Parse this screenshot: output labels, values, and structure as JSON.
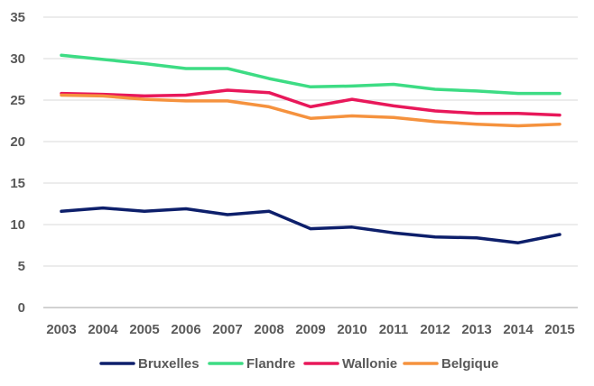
{
  "chart_data": {
    "type": "line",
    "title": "",
    "xlabel": "",
    "ylabel": "",
    "ylim": [
      0,
      35
    ],
    "yticks": [
      "0",
      "5",
      "10",
      "15",
      "20",
      "25",
      "30",
      "35"
    ],
    "categories": [
      "2003",
      "2004",
      "2005",
      "2006",
      "2007",
      "2008",
      "2009",
      "2010",
      "2011",
      "2012",
      "2013",
      "2014",
      "2015"
    ],
    "grid": "horizontal",
    "legend_position": "bottom",
    "series": [
      {
        "name": "Bruxelles",
        "color": "#0d1f6b",
        "values": [
          11.6,
          12.0,
          11.6,
          11.9,
          11.2,
          11.6,
          9.5,
          9.7,
          9.0,
          8.5,
          8.4,
          7.8,
          8.8
        ]
      },
      {
        "name": "Flandre",
        "color": "#3ddc84",
        "values": [
          30.4,
          29.9,
          29.4,
          28.8,
          28.8,
          27.6,
          26.6,
          26.7,
          26.9,
          26.3,
          26.1,
          25.8,
          25.8
        ]
      },
      {
        "name": "Wallonie",
        "color": "#e8185a",
        "values": [
          25.8,
          25.7,
          25.5,
          25.6,
          26.2,
          25.9,
          24.2,
          25.1,
          24.3,
          23.7,
          23.4,
          23.4,
          23.2
        ]
      },
      {
        "name": "Belgique",
        "color": "#f5923e",
        "values": [
          25.6,
          25.5,
          25.1,
          24.9,
          24.9,
          24.2,
          22.8,
          23.1,
          22.9,
          22.4,
          22.1,
          21.9,
          22.1
        ]
      }
    ]
  }
}
